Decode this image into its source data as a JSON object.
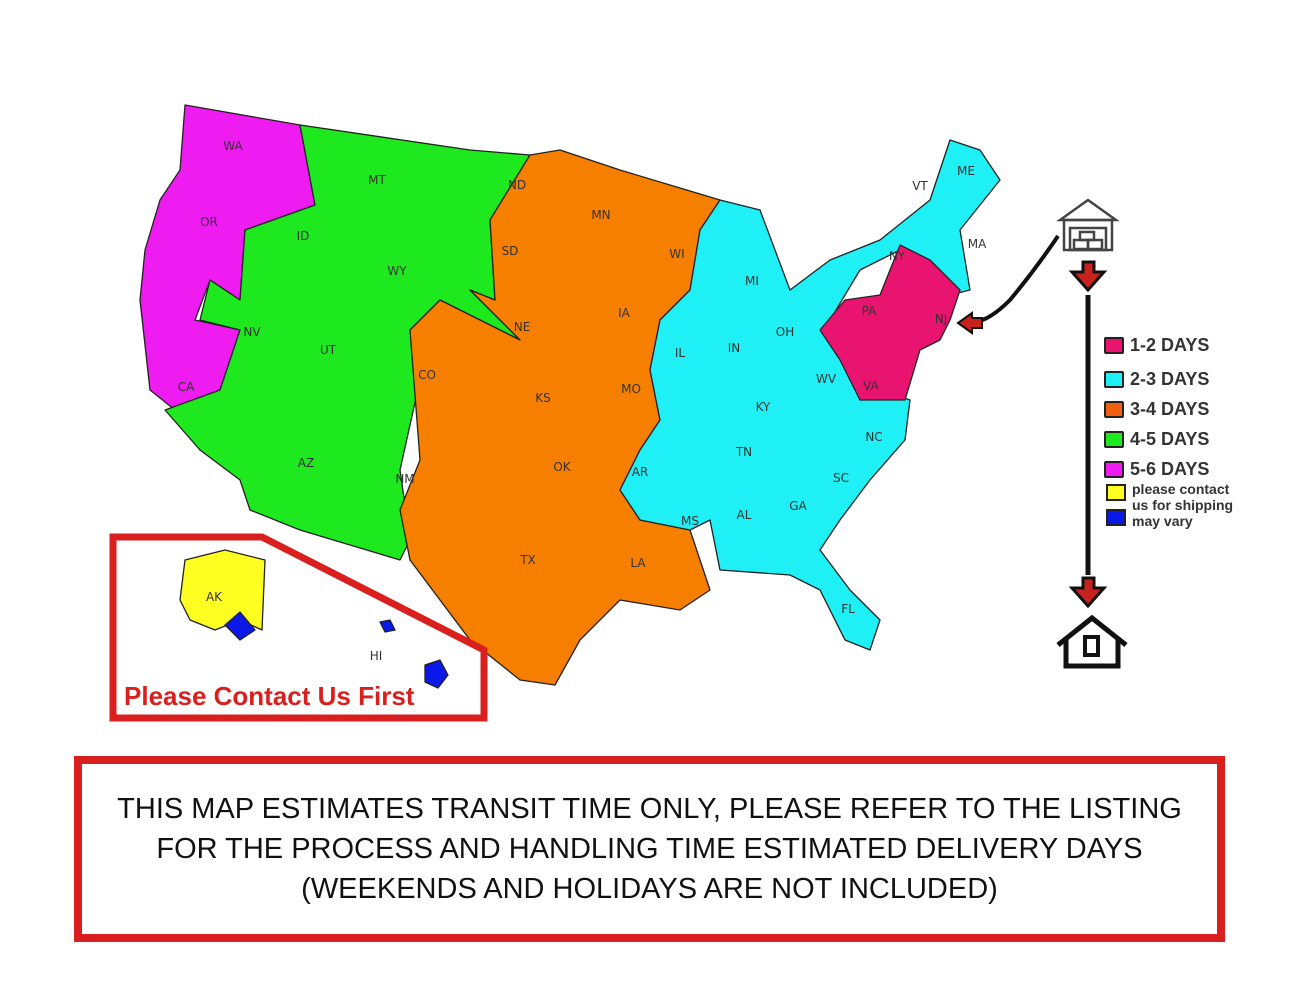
{
  "zone_colors": {
    "1-2": "#e8146f",
    "2-3": "#1ef0f5",
    "3-4": "#f77f00",
    "4-5": "#1ee81e",
    "5-6": "#ee1cf0",
    "contact": "#ffff22",
    "vary": "#0a18e8"
  },
  "states": [
    "WA",
    "OR",
    "CA",
    "ID",
    "NV",
    "MT",
    "WY",
    "UT",
    "AZ",
    "CO",
    "NM",
    "ND",
    "SD",
    "NE",
    "KS",
    "OK",
    "TX",
    "MN",
    "IA",
    "MO",
    "AR",
    "LA",
    "WI",
    "IL",
    "MI",
    "IN",
    "OH",
    "KY",
    "TN",
    "MS",
    "AL",
    "GA",
    "FL",
    "SC",
    "NC",
    "WV",
    "VA",
    "PA",
    "NY",
    "NJ",
    "VT",
    "ME",
    "MA",
    "AK",
    "HI"
  ],
  "legend": [
    {
      "label": "1-2 DAYS",
      "color": "#e8146f"
    },
    {
      "label": "2-3 DAYS",
      "color": "#1ef0f5"
    },
    {
      "label": "3-4 DAYS",
      "color": "#f06010"
    },
    {
      "label": "4-5 DAYS",
      "color": "#1ee81e"
    },
    {
      "label": "5-6 DAYS",
      "color": "#ee1cf0"
    }
  ],
  "legend_note": {
    "line1": "please contact",
    "line2": "us for shipping",
    "line3": "may vary",
    "yellow": "#ffff22",
    "blue": "#0a18e8"
  },
  "inset_title": "Please Contact Us First",
  "disclaimer": "THIS MAP ESTIMATES TRANSIT TIME ONLY, PLEASE REFER TO THE LISTING FOR THE PROCESS AND HANDLING TIME ESTIMATED DELIVERY DAYS (WEEKENDS AND HOLIDAYS ARE NOT INCLUDED)",
  "icons": {
    "origin": "warehouse-icon",
    "destination": "house-icon"
  }
}
